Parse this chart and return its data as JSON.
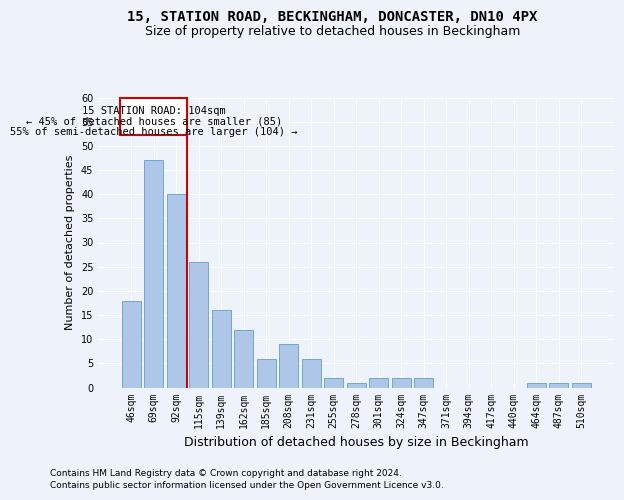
{
  "title1": "15, STATION ROAD, BECKINGHAM, DONCASTER, DN10 4PX",
  "title2": "Size of property relative to detached houses in Beckingham",
  "xlabel": "Distribution of detached houses by size in Beckingham",
  "ylabel": "Number of detached properties",
  "categories": [
    "46sqm",
    "69sqm",
    "92sqm",
    "115sqm",
    "139sqm",
    "162sqm",
    "185sqm",
    "208sqm",
    "231sqm",
    "255sqm",
    "278sqm",
    "301sqm",
    "324sqm",
    "347sqm",
    "371sqm",
    "394sqm",
    "417sqm",
    "440sqm",
    "464sqm",
    "487sqm",
    "510sqm"
  ],
  "values": [
    18,
    47,
    40,
    26,
    16,
    12,
    6,
    9,
    6,
    2,
    1,
    2,
    2,
    2,
    0,
    0,
    0,
    0,
    1,
    1,
    1
  ],
  "bar_color": "#aec6e8",
  "bar_edgecolor": "#6fa8d0",
  "annotation_title": "15 STATION ROAD: 104sqm",
  "annotation_line1": "← 45% of detached houses are smaller (85)",
  "annotation_line2": "55% of semi-detached houses are larger (104) →",
  "annotation_box_color": "#ffffff",
  "annotation_box_edgecolor": "#cc0000",
  "red_line_color": "#cc0000",
  "ylim": [
    0,
    60
  ],
  "yticks": [
    0,
    5,
    10,
    15,
    20,
    25,
    30,
    35,
    40,
    45,
    50,
    55,
    60
  ],
  "footnote1": "Contains HM Land Registry data © Crown copyright and database right 2024.",
  "footnote2": "Contains public sector information licensed under the Open Government Licence v3.0.",
  "bg_color": "#eef3fb",
  "plot_bg_color": "#eef3fb",
  "title1_fontsize": 10,
  "title2_fontsize": 9,
  "xlabel_fontsize": 9,
  "ylabel_fontsize": 8,
  "tick_fontsize": 7,
  "annot_fontsize": 7.5,
  "footnote_fontsize": 6.5
}
